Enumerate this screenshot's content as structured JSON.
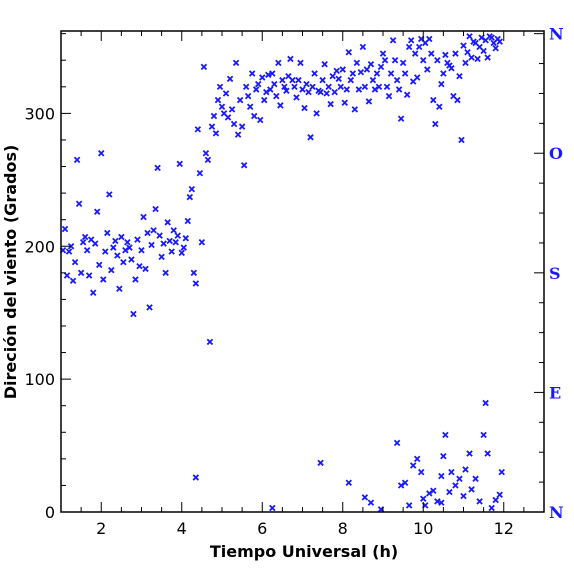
{
  "chart_data": {
    "type": "scatter",
    "title": "",
    "xlabel": "Tiempo Universal (h)",
    "ylabel": "Direción del viento (Grados)",
    "xlim": [
      1,
      13
    ],
    "ylim": [
      0,
      362
    ],
    "x_ticks": [
      2,
      4,
      6,
      8,
      10,
      12
    ],
    "y_ticks": [
      0,
      100,
      200,
      300
    ],
    "right_axis_labels": [
      {
        "value": 0,
        "label": "N"
      },
      {
        "value": 90,
        "label": "E"
      },
      {
        "value": 180,
        "label": "S"
      },
      {
        "value": 270,
        "label": "O"
      },
      {
        "value": 360,
        "label": "N"
      }
    ],
    "grid": false,
    "legend": "none",
    "marker": "x",
    "series": [
      {
        "color": "#1a1aff",
        "points": [
          [
            1.05,
            197
          ],
          [
            1.1,
            213
          ],
          [
            1.15,
            178
          ],
          [
            1.2,
            196
          ],
          [
            1.25,
            200
          ],
          [
            1.3,
            174
          ],
          [
            1.35,
            188
          ],
          [
            1.4,
            265
          ],
          [
            1.45,
            232
          ],
          [
            1.5,
            180
          ],
          [
            1.55,
            203
          ],
          [
            1.6,
            207
          ],
          [
            1.65,
            197
          ],
          [
            1.7,
            178
          ],
          [
            1.75,
            205
          ],
          [
            1.8,
            165
          ],
          [
            1.85,
            202
          ],
          [
            1.9,
            226
          ],
          [
            1.95,
            186
          ],
          [
            2.0,
            270
          ],
          [
            2.05,
            175
          ],
          [
            2.1,
            196
          ],
          [
            2.15,
            210
          ],
          [
            2.2,
            239
          ],
          [
            2.25,
            182
          ],
          [
            2.3,
            199
          ],
          [
            2.35,
            204
          ],
          [
            2.4,
            193
          ],
          [
            2.45,
            168
          ],
          [
            2.5,
            207
          ],
          [
            2.55,
            188
          ],
          [
            2.6,
            197
          ],
          [
            2.65,
            203
          ],
          [
            2.7,
            199
          ],
          [
            2.75,
            190
          ],
          [
            2.8,
            149
          ],
          [
            2.85,
            175
          ],
          [
            2.9,
            205
          ],
          [
            2.95,
            185
          ],
          [
            3.0,
            197
          ],
          [
            3.05,
            222
          ],
          [
            3.1,
            183
          ],
          [
            3.15,
            210
          ],
          [
            3.2,
            154
          ],
          [
            3.25,
            201
          ],
          [
            3.3,
            212
          ],
          [
            3.35,
            228
          ],
          [
            3.4,
            259
          ],
          [
            3.45,
            208
          ],
          [
            3.5,
            192
          ],
          [
            3.55,
            202
          ],
          [
            3.6,
            180
          ],
          [
            3.65,
            218
          ],
          [
            3.7,
            204
          ],
          [
            3.75,
            196
          ],
          [
            3.8,
            212
          ],
          [
            3.85,
            203
          ],
          [
            3.9,
            208
          ],
          [
            3.95,
            262
          ],
          [
            4.0,
            195
          ],
          [
            4.05,
            199
          ],
          [
            4.1,
            206
          ],
          [
            4.15,
            219
          ],
          [
            4.2,
            237
          ],
          [
            4.25,
            243
          ],
          [
            4.3,
            180
          ],
          [
            4.35,
            172
          ],
          [
            4.4,
            288
          ],
          [
            4.45,
            255
          ],
          [
            4.5,
            203
          ],
          [
            4.55,
            335
          ],
          [
            4.6,
            270
          ],
          [
            4.65,
            265
          ],
          [
            4.7,
            128
          ],
          [
            4.75,
            290
          ],
          [
            4.8,
            298
          ],
          [
            4.85,
            285
          ],
          [
            4.9,
            310
          ],
          [
            4.95,
            320
          ],
          [
            5.0,
            305
          ],
          [
            5.05,
            300
          ],
          [
            5.1,
            315
          ],
          [
            5.15,
            297
          ],
          [
            5.2,
            326
          ],
          [
            5.25,
            303
          ],
          [
            5.3,
            292
          ],
          [
            5.35,
            338
          ],
          [
            5.4,
            284
          ],
          [
            5.45,
            310
          ],
          [
            5.5,
            290
          ],
          [
            5.55,
            261
          ],
          [
            5.6,
            320
          ],
          [
            5.65,
            313
          ],
          [
            5.7,
            305
          ],
          [
            5.75,
            330
          ],
          [
            5.8,
            298
          ],
          [
            5.85,
            318
          ],
          [
            5.9,
            322
          ],
          [
            5.95,
            295
          ],
          [
            6.0,
            327
          ],
          [
            6.05,
            310
          ],
          [
            6.1,
            316
          ],
          [
            6.15,
            329
          ],
          [
            6.2,
            318
          ],
          [
            6.25,
            330
          ],
          [
            6.3,
            322
          ],
          [
            6.35,
            313
          ],
          [
            6.4,
            338
          ],
          [
            6.45,
            306
          ],
          [
            6.5,
            325
          ],
          [
            6.55,
            320
          ],
          [
            6.6,
            317
          ],
          [
            6.65,
            328
          ],
          [
            6.7,
            341
          ],
          [
            6.75,
            325
          ],
          [
            6.8,
            320
          ],
          [
            6.85,
            312
          ],
          [
            6.9,
            325
          ],
          [
            6.95,
            338
          ],
          [
            7.0,
            318
          ],
          [
            7.05,
            304
          ],
          [
            7.1,
            322
          ],
          [
            7.15,
            316
          ],
          [
            7.2,
            282
          ],
          [
            7.25,
            320
          ],
          [
            7.3,
            330
          ],
          [
            7.35,
            300
          ],
          [
            7.4,
            317
          ],
          [
            7.45,
            316
          ],
          [
            7.5,
            325
          ],
          [
            7.55,
            337
          ],
          [
            7.6,
            315
          ],
          [
            7.65,
            320
          ],
          [
            7.7,
            307
          ],
          [
            7.75,
            328
          ],
          [
            7.8,
            316
          ],
          [
            7.85,
            332
          ],
          [
            7.9,
            326
          ],
          [
            7.95,
            320
          ],
          [
            8.0,
            333
          ],
          [
            8.05,
            308
          ],
          [
            8.1,
            318
          ],
          [
            8.15,
            346
          ],
          [
            8.2,
            325
          ],
          [
            8.25,
            330
          ],
          [
            8.3,
            303
          ],
          [
            8.35,
            338
          ],
          [
            8.4,
            318
          ],
          [
            8.45,
            331
          ],
          [
            8.5,
            350
          ],
          [
            8.55,
            320
          ],
          [
            8.6,
            333
          ],
          [
            8.65,
            309
          ],
          [
            8.7,
            337
          ],
          [
            8.75,
            325
          ],
          [
            8.8,
            318
          ],
          [
            8.85,
            330
          ],
          [
            8.9,
            320
          ],
          [
            8.95,
            335
          ],
          [
            9.0,
            345
          ],
          [
            9.05,
            340
          ],
          [
            9.1,
            320
          ],
          [
            9.15,
            313
          ],
          [
            9.2,
            330
          ],
          [
            9.25,
            355
          ],
          [
            9.3,
            340
          ],
          [
            9.35,
            325
          ],
          [
            9.4,
            318
          ],
          [
            9.45,
            296
          ],
          [
            9.5,
            338
          ],
          [
            9.55,
            330
          ],
          [
            9.6,
            314
          ],
          [
            9.65,
            350
          ],
          [
            9.7,
            355
          ],
          [
            9.75,
            324
          ],
          [
            9.8,
            345
          ],
          [
            9.85,
            327
          ],
          [
            9.9,
            350
          ],
          [
            9.95,
            356
          ],
          [
            10.0,
            340
          ],
          [
            10.05,
            353
          ],
          [
            10.1,
            333
          ],
          [
            10.15,
            356
          ],
          [
            10.2,
            345
          ],
          [
            10.25,
            310
          ],
          [
            10.3,
            292
          ],
          [
            10.35,
            340
          ],
          [
            10.4,
            305
          ],
          [
            10.45,
            322
          ],
          [
            10.5,
            330
          ],
          [
            10.55,
            344
          ],
          [
            10.6,
            338
          ],
          [
            10.65,
            336
          ],
          [
            10.7,
            334
          ],
          [
            10.75,
            313
          ],
          [
            10.8,
            345
          ],
          [
            10.85,
            310
          ],
          [
            10.9,
            328
          ],
          [
            10.95,
            280
          ],
          [
            11.0,
            351
          ],
          [
            11.05,
            338
          ],
          [
            11.1,
            346
          ],
          [
            11.15,
            358
          ],
          [
            11.2,
            342
          ],
          [
            11.25,
            354
          ],
          [
            11.3,
            353
          ],
          [
            11.35,
            341
          ],
          [
            11.4,
            350
          ],
          [
            11.45,
            357
          ],
          [
            11.5,
            347
          ],
          [
            11.55,
            355
          ],
          [
            11.6,
            342
          ],
          [
            11.65,
            358
          ],
          [
            11.7,
            357
          ],
          [
            11.75,
            353
          ],
          [
            11.8,
            349
          ],
          [
            11.85,
            356
          ],
          [
            11.9,
            354
          ],
          [
            4.35,
            26
          ],
          [
            6.25,
            3
          ],
          [
            7.45,
            37
          ],
          [
            8.15,
            22
          ],
          [
            8.55,
            11
          ],
          [
            8.7,
            7
          ],
          [
            8.95,
            2
          ],
          [
            9.35,
            52
          ],
          [
            9.45,
            20
          ],
          [
            9.55,
            22
          ],
          [
            9.65,
            5
          ],
          [
            9.75,
            35
          ],
          [
            9.85,
            40
          ],
          [
            9.95,
            30
          ],
          [
            10.0,
            10
          ],
          [
            10.05,
            5
          ],
          [
            10.15,
            14
          ],
          [
            10.25,
            16
          ],
          [
            10.35,
            8
          ],
          [
            10.45,
            27
          ],
          [
            10.5,
            42
          ],
          [
            10.55,
            58
          ],
          [
            10.65,
            15
          ],
          [
            10.7,
            30
          ],
          [
            10.8,
            20
          ],
          [
            10.9,
            25
          ],
          [
            11.0,
            12
          ],
          [
            11.05,
            32
          ],
          [
            11.15,
            44
          ],
          [
            11.2,
            17
          ],
          [
            11.3,
            25
          ],
          [
            11.4,
            8
          ],
          [
            11.5,
            58
          ],
          [
            11.55,
            82
          ],
          [
            11.6,
            44
          ],
          [
            11.7,
            3
          ],
          [
            11.8,
            9
          ],
          [
            11.9,
            13
          ],
          [
            11.95,
            30
          ],
          [
            10.45,
            7
          ]
        ]
      }
    ]
  }
}
